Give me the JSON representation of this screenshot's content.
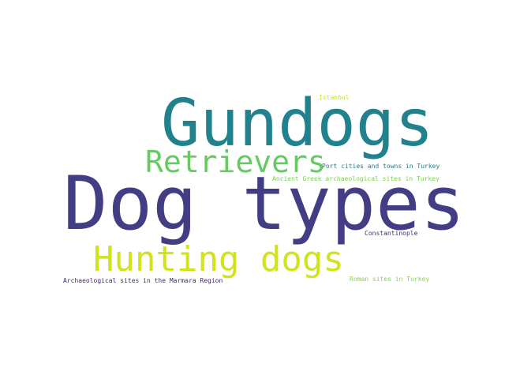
{
  "words": [
    {
      "text": "Gundogs",
      "color": "#21818c"
    },
    {
      "text": "Dog types",
      "color": "#433d84"
    },
    {
      "text": "Retrievers",
      "color": "#63cb5f"
    },
    {
      "text": "Hunting dogs",
      "color": "#d2e21b"
    },
    {
      "text": "Istanbul",
      "color": "#d8e219"
    },
    {
      "text": "Port cities and towns in Turkey",
      "color": "#2a788e"
    },
    {
      "text": "Ancient Greek archaeological sites in Turkey",
      "color": "#7ad151"
    },
    {
      "text": "Constantinople",
      "color": "#472c7a"
    },
    {
      "text": "Archaeological sites in the Marmara Region",
      "color": "#482475"
    },
    {
      "text": "Roman sites in Turkey",
      "color": "#86d549"
    }
  ]
}
